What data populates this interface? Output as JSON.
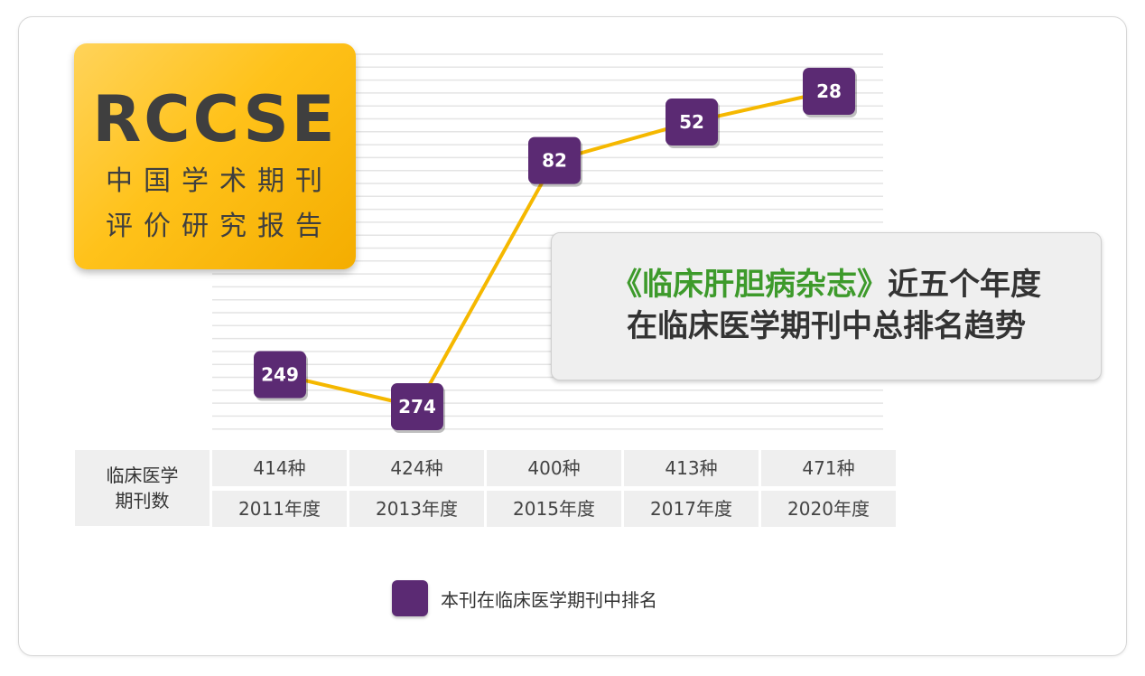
{
  "badge": {
    "brand": "RCCSE",
    "line1": "中国学术期刊",
    "line2": "评价研究报告"
  },
  "callout": {
    "journal": "《临床肝胆病杂志》",
    "line1_rest": "近五个年度",
    "line2": "在临床医学期刊中总排名趋势"
  },
  "table": {
    "row_header": [
      "临床医学",
      "期刊数"
    ],
    "counts": [
      "414种",
      "424种",
      "400种",
      "413种",
      "471种"
    ],
    "years": [
      "2011年度",
      "2013年度",
      "2015年度",
      "2017年度",
      "2020年度"
    ]
  },
  "legend": {
    "label": "本刊在临床医学期刊中排名"
  },
  "colors": {
    "marker": "#5b2a73",
    "line": "#f5b800",
    "badge": "#ffc21a",
    "journal_title": "#3d9a2b"
  },
  "chart_data": {
    "type": "line",
    "categories": [
      "2011年度",
      "2013年度",
      "2015年度",
      "2017年度",
      "2020年度"
    ],
    "series": [
      {
        "name": "本刊在临床医学期刊中排名",
        "values": [
          249,
          274,
          82,
          52,
          28
        ]
      }
    ],
    "title": "",
    "xlabel": "",
    "ylabel": "",
    "y_inverted": true,
    "grid": true
  }
}
